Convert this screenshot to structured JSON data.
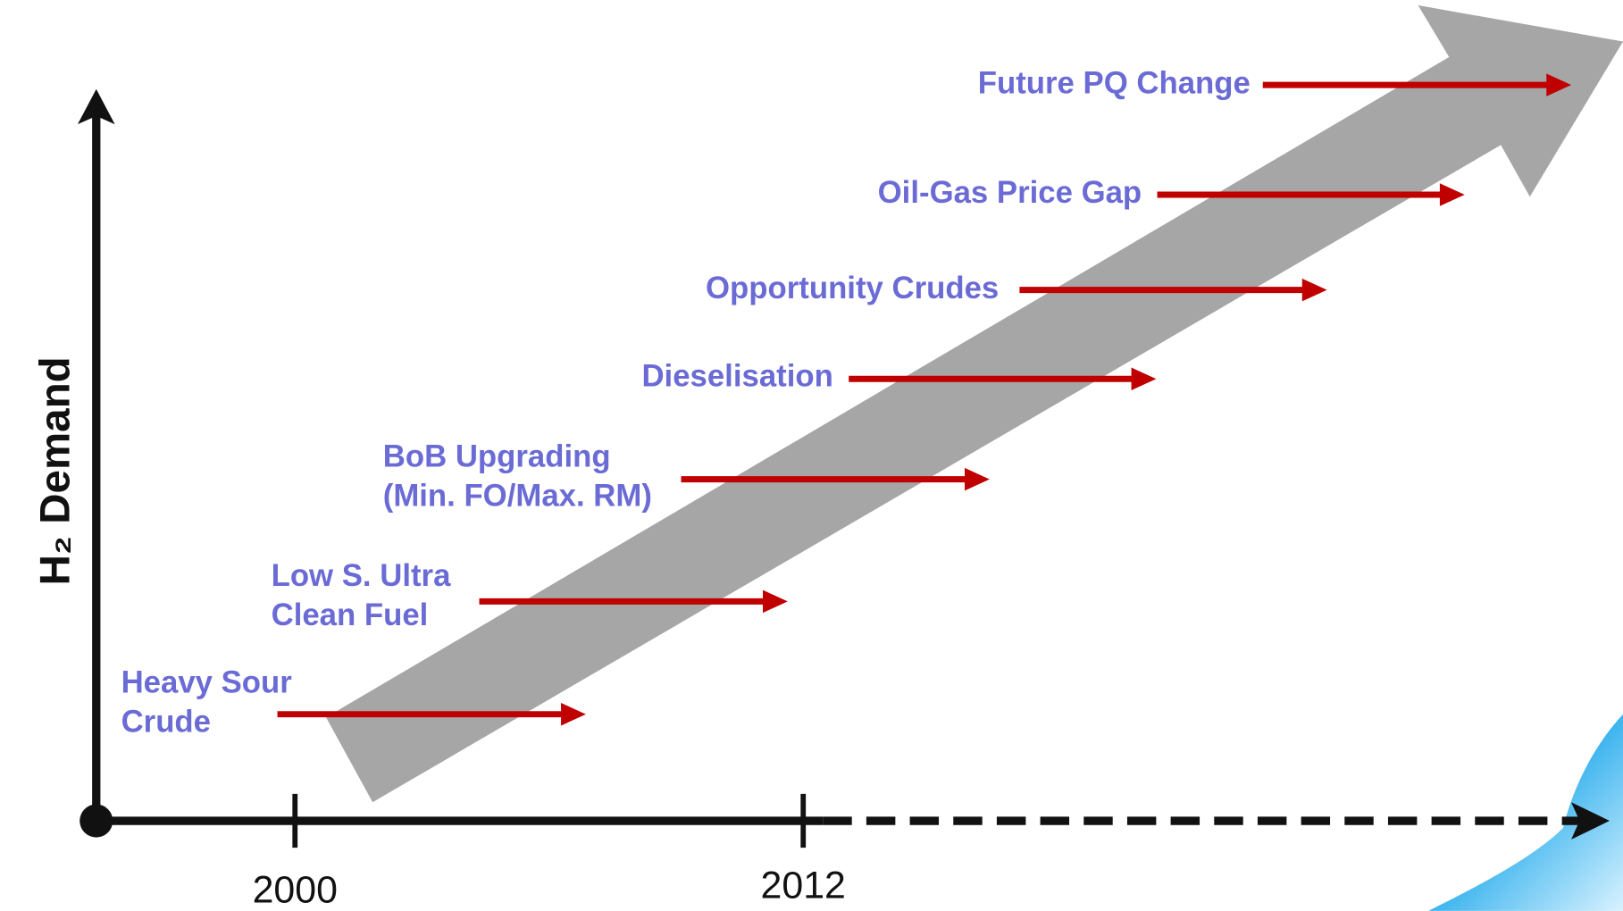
{
  "y_axis_label": "H₂ Demand",
  "x_axis": {
    "ticks": [
      "2000",
      "2012"
    ]
  },
  "drivers": [
    {
      "lines": [
        "Heavy Sour",
        "Crude"
      ]
    },
    {
      "lines": [
        "Low S. Ultra",
        "Clean Fuel"
      ]
    },
    {
      "lines": [
        "BoB Upgrading",
        "(Min. FO/Max. RM)"
      ]
    },
    {
      "lines": [
        "Dieselisation"
      ]
    },
    {
      "lines": [
        "Opportunity Crudes"
      ]
    },
    {
      "lines": [
        "Oil-Gas Price Gap"
      ]
    },
    {
      "lines": [
        "Future PQ Change"
      ]
    }
  ]
}
